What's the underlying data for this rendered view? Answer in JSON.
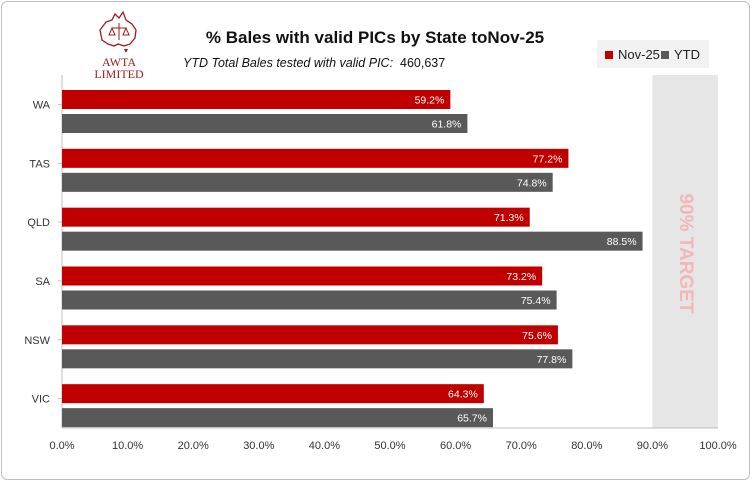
{
  "chart_data": {
    "type": "bar",
    "orientation": "horizontal",
    "title": "% Bales with valid PICs by State toNov-25",
    "subtitle_label": "YTD Total Bales tested with valid PIC:",
    "subtitle_value": "460,637",
    "categories": [
      "WA",
      "TAS",
      "QLD",
      "SA",
      "NSW",
      "VIC"
    ],
    "series": [
      {
        "name": "Nov-25",
        "color": "#c00000",
        "values": [
          59.2,
          77.2,
          71.3,
          73.2,
          75.6,
          64.3
        ]
      },
      {
        "name": "YTD",
        "color": "#595959",
        "values": [
          61.8,
          74.8,
          88.5,
          75.4,
          77.8,
          65.7
        ]
      }
    ],
    "xlim": [
      0,
      100
    ],
    "xticks": [
      "0.0%",
      "10.0%",
      "20.0%",
      "30.0%",
      "40.0%",
      "50.0%",
      "60.0%",
      "70.0%",
      "80.0%",
      "90.0%",
      "100.0%"
    ],
    "target_band": {
      "from": 90,
      "to": 100,
      "label": "90% TARGET"
    },
    "legend_position": "top-right",
    "grid": false
  },
  "logo": {
    "line1": "AWTA",
    "line2": "LIMITED"
  },
  "colors": {
    "accent": "#c00000",
    "ytd": "#595959",
    "band": "#e6e6e6",
    "target_text": "#f4b6b6"
  }
}
